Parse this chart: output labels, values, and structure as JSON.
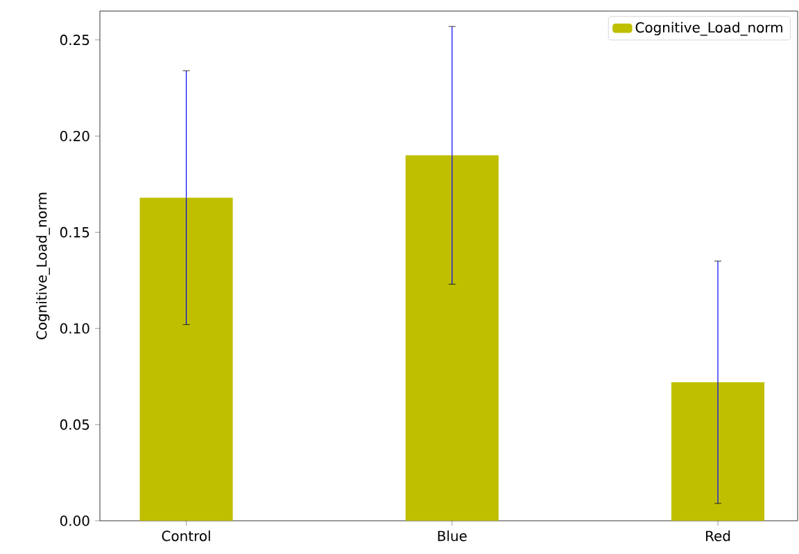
{
  "chart_data": {
    "type": "bar",
    "ylabel": "Cognitive_Load_norm",
    "categories": [
      "Control",
      "Blue",
      "Red"
    ],
    "series": [
      {
        "name": "Cognitive_Load_norm",
        "color": "#bfbf00",
        "values": [
          0.168,
          0.19,
          0.072
        ],
        "errors": [
          0.066,
          0.067,
          0.063
        ]
      }
    ],
    "ylim": [
      0,
      0.265
    ],
    "yticks": [
      {
        "value": 0,
        "label": "0.00"
      },
      0.05,
      {
        "value": 0.1,
        "label": "0.10"
      },
      0.15,
      {
        "value": 0.2,
        "label": "0.20"
      },
      0.25
    ],
    "legend": "top right"
  }
}
